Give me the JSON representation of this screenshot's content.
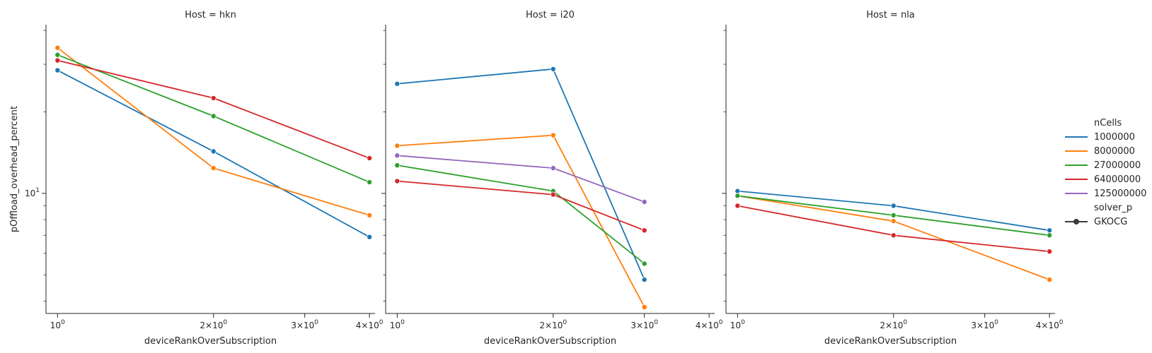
{
  "chart_data": {
    "type": "line",
    "xlabel": "deviceRankOverSubscription",
    "ylabel": "pOffload_overhead_percent",
    "xscale": "log",
    "yscale": "log",
    "xlim": [
      0.95,
      4.1
    ],
    "ylim": [
      3.6,
      42
    ],
    "x_ticks": [
      {
        "value": 1,
        "base": "10",
        "exp": "0"
      },
      {
        "value": 2,
        "base": "2×10",
        "exp": "0"
      },
      {
        "value": 3,
        "base": "3×10",
        "exp": "0"
      },
      {
        "value": 4,
        "base": "4×10",
        "exp": "0"
      }
    ],
    "y_major_ticks": [
      {
        "value": 10,
        "base": "10",
        "exp": "1"
      }
    ],
    "y_minor_ticks": [
      4,
      5,
      6,
      7,
      8,
      9,
      20,
      30,
      40
    ],
    "series_colors": {
      "1000000": "#1f77b4",
      "8000000": "#ff7f0e",
      "27000000": "#2ca02c",
      "64000000": "#d62728",
      "125000000": "#9467bd"
    },
    "legend": {
      "placement": "right",
      "hue_title": "nCells",
      "hue_entries": [
        "1000000",
        "8000000",
        "27000000",
        "64000000",
        "125000000"
      ],
      "style_title": "solver_p",
      "style_entries": [
        "GKOCG"
      ]
    },
    "facets": [
      {
        "title": "Host = hkn",
        "series": [
          {
            "name": "1000000",
            "x": [
              1,
              2,
              4
            ],
            "y": [
              28.5,
              14.3,
              6.9
            ]
          },
          {
            "name": "8000000",
            "x": [
              1,
              2,
              4
            ],
            "y": [
              34.5,
              12.4,
              8.3
            ]
          },
          {
            "name": "27000000",
            "x": [
              1,
              2,
              4
            ],
            "y": [
              32.5,
              19.3,
              11.0
            ]
          },
          {
            "name": "64000000",
            "x": [
              1,
              2,
              4
            ],
            "y": [
              31.0,
              22.5,
              13.5
            ]
          }
        ]
      },
      {
        "title": "Host = i20",
        "series": [
          {
            "name": "1000000",
            "x": [
              1,
              2,
              3
            ],
            "y": [
              25.4,
              28.8,
              4.8
            ]
          },
          {
            "name": "8000000",
            "x": [
              1,
              2,
              3
            ],
            "y": [
              15.0,
              16.4,
              3.8
            ]
          },
          {
            "name": "27000000",
            "x": [
              1,
              2,
              3
            ],
            "y": [
              12.7,
              10.2,
              5.5
            ]
          },
          {
            "name": "64000000",
            "x": [
              1,
              2,
              3
            ],
            "y": [
              11.1,
              9.9,
              7.3
            ]
          },
          {
            "name": "125000000",
            "x": [
              1,
              2,
              3
            ],
            "y": [
              13.8,
              12.4,
              9.3
            ]
          }
        ]
      },
      {
        "title": "Host = nla",
        "series": [
          {
            "name": "1000000",
            "x": [
              1,
              2,
              4
            ],
            "y": [
              10.2,
              9.0,
              7.3
            ]
          },
          {
            "name": "8000000",
            "x": [
              1,
              2,
              4
            ],
            "y": [
              9.8,
              7.9,
              4.8
            ]
          },
          {
            "name": "27000000",
            "x": [
              1,
              2,
              4
            ],
            "y": [
              9.8,
              8.3,
              7.0
            ]
          },
          {
            "name": "64000000",
            "x": [
              1,
              2,
              4
            ],
            "y": [
              9.0,
              7.0,
              6.1
            ]
          }
        ]
      }
    ]
  }
}
